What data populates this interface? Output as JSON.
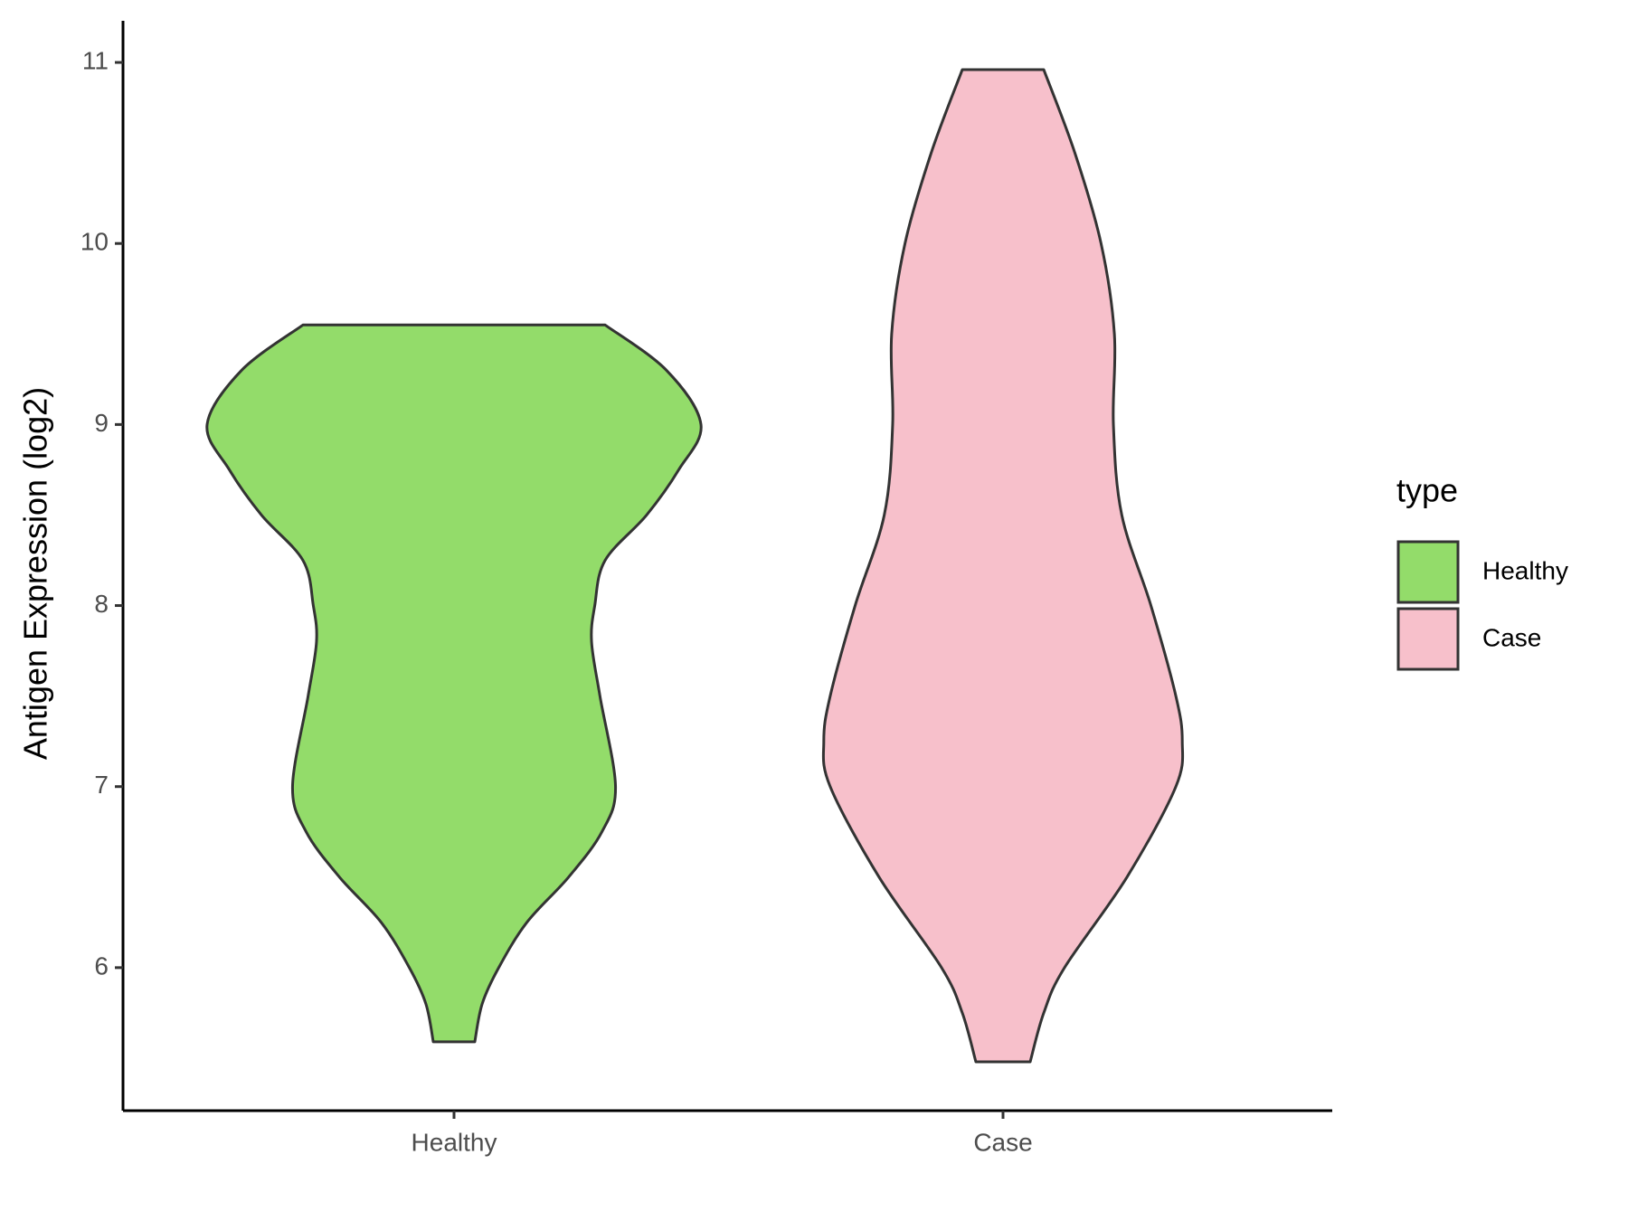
{
  "chart_data": {
    "type": "violin",
    "y_label": "Antigen Expression (log2)",
    "categories": [
      "Healthy",
      "Case"
    ],
    "ylim": [
      5.21,
      11.23
    ],
    "yticks": [
      6,
      7,
      8,
      9,
      10,
      11
    ],
    "legend_title": "type",
    "legend_position": "right",
    "series": [
      {
        "name": "Healthy",
        "color": "#93dc6a",
        "y": [
          9.55,
          9.3,
          9.0,
          8.75,
          8.5,
          8.25,
          8.0,
          7.8,
          7.5,
          7.0,
          6.75,
          6.5,
          6.25,
          6.0,
          5.8,
          5.59
        ],
        "density": [
          0.612,
          0.86,
          1.0,
          0.91,
          0.78,
          0.612,
          0.57,
          0.557,
          0.591,
          0.654,
          0.599,
          0.464,
          0.295,
          0.181,
          0.114,
          0.084
        ]
      },
      {
        "name": "Case",
        "color": "#f7c0cb",
        "y": [
          10.96,
          10.5,
          10.0,
          9.5,
          9.0,
          8.5,
          8.0,
          7.5,
          7.25,
          7.0,
          6.5,
          6.0,
          5.75,
          5.48
        ],
        "density": [
          0.165,
          0.291,
          0.397,
          0.451,
          0.447,
          0.481,
          0.599,
          0.7,
          0.726,
          0.7,
          0.502,
          0.249,
          0.165,
          0.11
        ]
      }
    ]
  }
}
